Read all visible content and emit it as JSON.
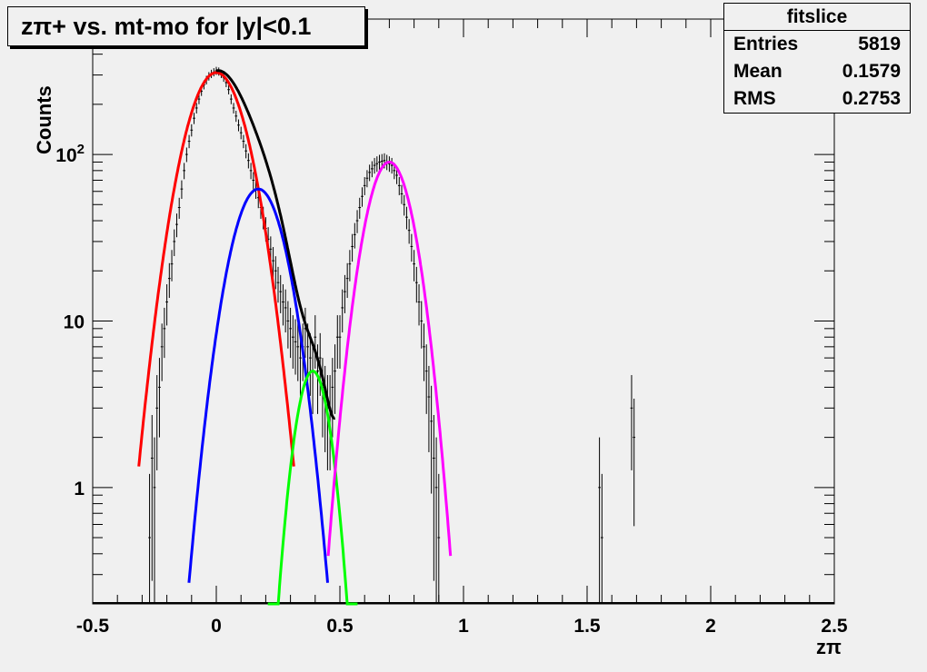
{
  "chart_data": {
    "type": "line",
    "title": "zπ+ vs. mt-mo for |y|<0.1",
    "xlabel": "zπ",
    "ylabel": "Counts",
    "xlim": [
      -0.5,
      2.5
    ],
    "ylim": [
      0.2,
      650
    ],
    "log_y": true,
    "x_ticks": [
      -0.5,
      0,
      0.5,
      1,
      1.5,
      2,
      2.5
    ],
    "x_tick_labels": [
      "-0.5",
      "0",
      "0.5",
      "1",
      "1.5",
      "2",
      "2.5"
    ],
    "y_ticks": [
      1,
      10,
      100
    ],
    "y_tick_labels": [
      "1",
      "10",
      "10²"
    ],
    "grid": false,
    "stats_box": {
      "title": "fitslice",
      "rows": [
        {
          "label": "Entries",
          "value": "5819"
        },
        {
          "label": "Mean",
          "value": "0.1579"
        },
        {
          "label": "RMS",
          "value": "0.2753"
        }
      ]
    },
    "histogram": {
      "bins": [
        [
          -0.27,
          0.5
        ],
        [
          -0.26,
          1.5
        ],
        [
          -0.25,
          1.0
        ],
        [
          -0.24,
          3.0
        ],
        [
          -0.23,
          4.0
        ],
        [
          -0.22,
          7.0
        ],
        [
          -0.21,
          9.0
        ],
        [
          -0.2,
          13.0
        ],
        [
          -0.19,
          18.0
        ],
        [
          -0.18,
          22.0
        ],
        [
          -0.17,
          30.0
        ],
        [
          -0.16,
          38.0
        ],
        [
          -0.15,
          48.0
        ],
        [
          -0.14,
          62.0
        ],
        [
          -0.13,
          80.0
        ],
        [
          -0.12,
          100.0
        ],
        [
          -0.11,
          120.0
        ],
        [
          -0.1,
          140.0
        ],
        [
          -0.09,
          165.0
        ],
        [
          -0.08,
          190.0
        ],
        [
          -0.07,
          215.0
        ],
        [
          -0.06,
          240.0
        ],
        [
          -0.05,
          262.0
        ],
        [
          -0.04,
          280.0
        ],
        [
          -0.03,
          295.0
        ],
        [
          -0.02,
          305.0
        ],
        [
          -0.01,
          312.0
        ],
        [
          0.0,
          318.0
        ],
        [
          0.01,
          315.0
        ],
        [
          0.02,
          305.0
        ],
        [
          0.03,
          290.0
        ],
        [
          0.04,
          270.0
        ],
        [
          0.05,
          245.0
        ],
        [
          0.06,
          215.0
        ],
        [
          0.07,
          190.0
        ],
        [
          0.08,
          170.0
        ],
        [
          0.09,
          150.0
        ],
        [
          0.1,
          135.0
        ],
        [
          0.11,
          120.0
        ],
        [
          0.12,
          105.0
        ],
        [
          0.13,
          92.0
        ],
        [
          0.14,
          80.0
        ],
        [
          0.15,
          70.0
        ],
        [
          0.16,
          62.0
        ],
        [
          0.17,
          55.0
        ],
        [
          0.18,
          48.0
        ],
        [
          0.19,
          42.0
        ],
        [
          0.2,
          36.0
        ],
        [
          0.21,
          31.0
        ],
        [
          0.22,
          27.0
        ],
        [
          0.23,
          23.0
        ],
        [
          0.24,
          20.0
        ],
        [
          0.25,
          17.0
        ],
        [
          0.26,
          15.0
        ],
        [
          0.27,
          13.0
        ],
        [
          0.28,
          12.0
        ],
        [
          0.29,
          10.0
        ],
        [
          0.3,
          9.0
        ],
        [
          0.31,
          8.0
        ],
        [
          0.32,
          7.5
        ],
        [
          0.33,
          7.0
        ],
        [
          0.34,
          6.0
        ],
        [
          0.35,
          7.0
        ],
        [
          0.36,
          9.0
        ],
        [
          0.37,
          7.0
        ],
        [
          0.38,
          6.0
        ],
        [
          0.39,
          5.0
        ],
        [
          0.4,
          8.0
        ],
        [
          0.41,
          5.0
        ],
        [
          0.42,
          6.0
        ],
        [
          0.43,
          4.0
        ],
        [
          0.44,
          3.5
        ],
        [
          0.45,
          3.0
        ],
        [
          0.46,
          3.0
        ],
        [
          0.47,
          4.0
        ],
        [
          0.48,
          5.0
        ],
        [
          0.49,
          8.0
        ],
        [
          0.5,
          8.0
        ],
        [
          0.51,
          12.0
        ],
        [
          0.52,
          15.0
        ],
        [
          0.53,
          18.0
        ],
        [
          0.54,
          22.0
        ],
        [
          0.55,
          28.0
        ],
        [
          0.56,
          33.0
        ],
        [
          0.57,
          40.0
        ],
        [
          0.58,
          48.0
        ],
        [
          0.59,
          56.0
        ],
        [
          0.6,
          65.0
        ],
        [
          0.61,
          72.0
        ],
        [
          0.62,
          78.0
        ],
        [
          0.63,
          82.0
        ],
        [
          0.64,
          86.0
        ],
        [
          0.65,
          88.0
        ],
        [
          0.66,
          90.0
        ],
        [
          0.67,
          91.0
        ],
        [
          0.68,
          92.0
        ],
        [
          0.69,
          90.0
        ],
        [
          0.7,
          88.0
        ],
        [
          0.71,
          86.0
        ],
        [
          0.72,
          80.0
        ],
        [
          0.73,
          75.0
        ],
        [
          0.74,
          65.0
        ],
        [
          0.75,
          58.0
        ],
        [
          0.76,
          50.0
        ],
        [
          0.77,
          42.0
        ],
        [
          0.78,
          35.0
        ],
        [
          0.79,
          28.0
        ],
        [
          0.8,
          22.0
        ],
        [
          0.81,
          17.0
        ],
        [
          0.82,
          13.0
        ],
        [
          0.83,
          10.0
        ],
        [
          0.84,
          7.0
        ],
        [
          0.85,
          5.0
        ],
        [
          0.86,
          3.5
        ],
        [
          0.87,
          2.5
        ],
        [
          0.88,
          1.5
        ],
        [
          0.89,
          1.0
        ],
        [
          0.9,
          0.5
        ],
        [
          1.55,
          1.0
        ],
        [
          1.56,
          0.5
        ],
        [
          1.68,
          3.0
        ],
        [
          1.69,
          2.0
        ]
      ]
    },
    "series": [
      {
        "color": "#ff0000",
        "peak": 310,
        "mean": 0.0,
        "sigma": 0.095
      },
      {
        "color": "#0000ff",
        "peak": 62,
        "mean": 0.17,
        "sigma": 0.085
      },
      {
        "color": "#00ff00",
        "peak": 5,
        "mean": 0.39,
        "sigma": 0.055
      },
      {
        "color": "#ff00ff",
        "peak": 90,
        "mean": 0.7,
        "sigma": 0.075
      },
      {
        "color": "#000000"
      }
    ]
  }
}
